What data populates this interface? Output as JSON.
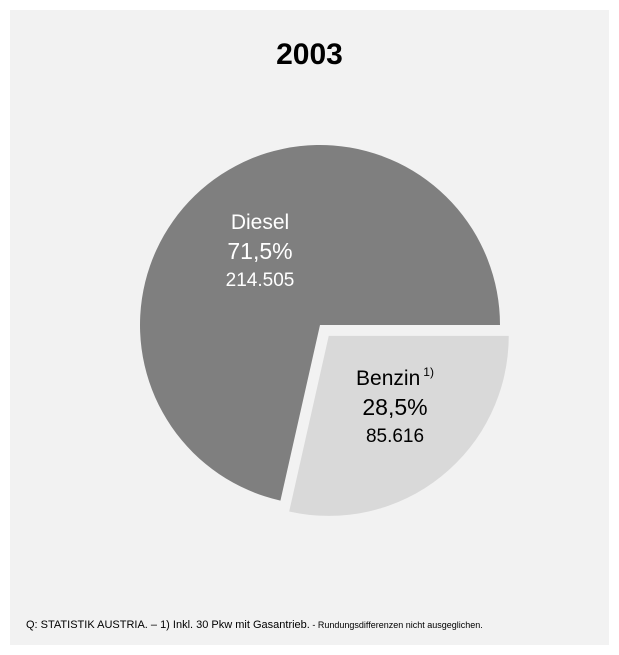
{
  "chart_data": {
    "type": "pie",
    "title": "2003",
    "slices": [
      {
        "name": "Diesel",
        "percent_label": "71,5%",
        "value_label": "214.505",
        "value": 214505,
        "percent": 71.5,
        "color": "#7f7f7f",
        "text_color": "#ffffff"
      },
      {
        "name": "Benzin",
        "footnote": "1)",
        "percent_label": "28,5%",
        "value_label": "85.616",
        "value": 85616,
        "percent": 28.5,
        "color": "#d9d9d9",
        "text_color": "#000000"
      }
    ],
    "exploded_slice": "Benzin"
  },
  "footer": {
    "source_main": "Q: STATISTIK AUSTRIA. – 1) Inkl. 30 Pkw mit Gasantrieb.",
    "source_note": " - Rundungsdifferenzen nicht ausgeglichen."
  },
  "colors": {
    "panel_background": "#f2f2f2",
    "page_background": "#ffffff"
  }
}
